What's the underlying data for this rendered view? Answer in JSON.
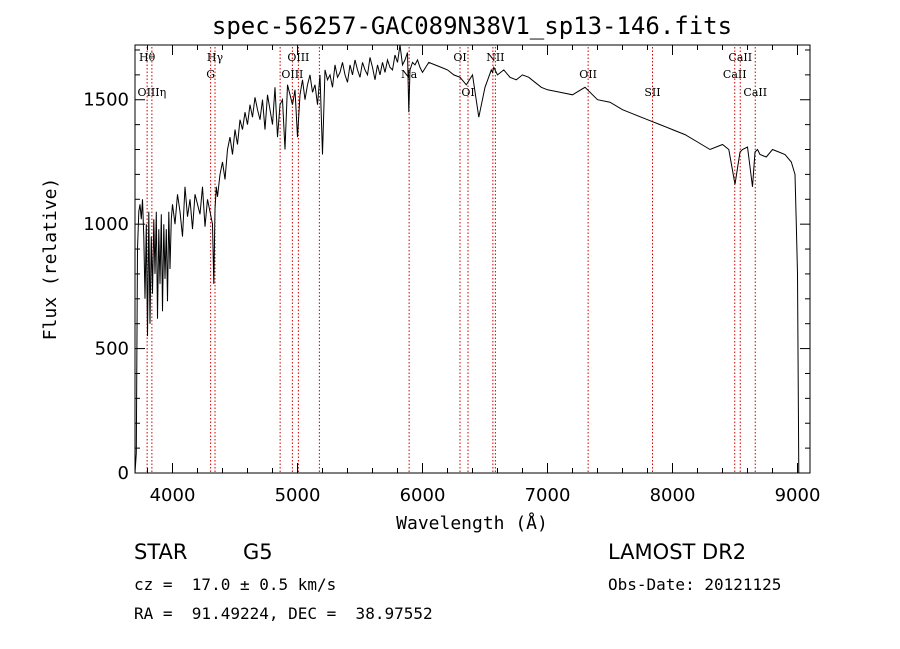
{
  "chart_data": {
    "type": "line",
    "title": "spec-56257-GAC089N38V1_sp13-146.fits",
    "xlabel": "Wavelength (Å)",
    "ylabel": "Flux (relative)",
    "xlim": [
      3700,
      9100
    ],
    "ylim": [
      0,
      1720
    ],
    "xticks": [
      4000,
      5000,
      6000,
      7000,
      8000,
      9000
    ],
    "yticks": [
      0,
      500,
      1000,
      1500
    ],
    "grid": false,
    "series": [
      {
        "x": [
          3700,
          3710,
          3720,
          3730,
          3740,
          3750,
          3760,
          3770,
          3780,
          3790,
          3800,
          3810,
          3820,
          3830,
          3840,
          3850,
          3860,
          3870,
          3880,
          3890,
          3900,
          3910,
          3920,
          3930,
          3940,
          3950,
          3960,
          3970,
          3980,
          3990,
          4000,
          4020,
          4040,
          4060,
          4080,
          4100,
          4120,
          4140,
          4160,
          4180,
          4200,
          4220,
          4240,
          4260,
          4280,
          4300,
          4320,
          4330,
          4340,
          4350,
          4360,
          4380,
          4400,
          4420,
          4440,
          4460,
          4480,
          4500,
          4520,
          4540,
          4560,
          4580,
          4600,
          4620,
          4640,
          4660,
          4680,
          4700,
          4720,
          4740,
          4760,
          4780,
          4800,
          4820,
          4840,
          4860,
          4880,
          4900,
          4920,
          4940,
          4960,
          4980,
          5000,
          5020,
          5040,
          5060,
          5080,
          5100,
          5120,
          5140,
          5160,
          5180,
          5200,
          5220,
          5240,
          5260,
          5280,
          5300,
          5320,
          5340,
          5360,
          5380,
          5400,
          5420,
          5440,
          5460,
          5480,
          5500,
          5520,
          5540,
          5560,
          5580,
          5600,
          5620,
          5640,
          5660,
          5680,
          5700,
          5720,
          5740,
          5760,
          5780,
          5800,
          5820,
          5840,
          5860,
          5880,
          5890,
          5900,
          5920,
          5940,
          5960,
          5980,
          6000,
          6050,
          6100,
          6150,
          6200,
          6250,
          6300,
          6350,
          6400,
          6450,
          6500,
          6550,
          6560,
          6570,
          6600,
          6650,
          6700,
          6750,
          6800,
          6850,
          6900,
          6950,
          7000,
          7100,
          7200,
          7300,
          7400,
          7500,
          7600,
          7700,
          7800,
          7900,
          8000,
          8100,
          8200,
          8300,
          8400,
          8450,
          8500,
          8540,
          8560,
          8600,
          8640,
          8660,
          8680,
          8700,
          8750,
          8800,
          8850,
          8900,
          8950,
          8980,
          8990,
          9000,
          9010
        ],
        "y": [
          0,
          80,
          900,
          1050,
          1080,
          1020,
          1100,
          950,
          700,
          1000,
          550,
          1050,
          600,
          950,
          720,
          1020,
          800,
          1050,
          620,
          980,
          760,
          1040,
          650,
          1000,
          780,
          980,
          690,
          1050,
          820,
          1020,
          1080,
          1000,
          1120,
          1050,
          950,
          1150,
          1030,
          1100,
          980,
          1120,
          1080,
          1040,
          1150,
          990,
          1100,
          1050,
          1000,
          760,
          1060,
          1150,
          1110,
          1200,
          1250,
          1180,
          1300,
          1350,
          1280,
          1380,
          1320,
          1420,
          1380,
          1450,
          1400,
          1480,
          1430,
          1510,
          1460,
          1420,
          1500,
          1380,
          1520,
          1460,
          1400,
          1550,
          1350,
          1480,
          1500,
          1300,
          1560,
          1520,
          1480,
          1540,
          1350,
          1520,
          1580,
          1500,
          1560,
          1600,
          1530,
          1560,
          1480,
          1600,
          1280,
          1620,
          1580,
          1600,
          1550,
          1640,
          1590,
          1610,
          1650,
          1600,
          1570,
          1640,
          1600,
          1660,
          1620,
          1590,
          1650,
          1620,
          1600,
          1670,
          1630,
          1580,
          1640,
          1600,
          1650,
          1610,
          1660,
          1630,
          1620,
          1680,
          1650,
          1720,
          1640,
          1660,
          1690,
          1450,
          1620,
          1650,
          1640,
          1660,
          1630,
          1610,
          1650,
          1640,
          1630,
          1620,
          1600,
          1590,
          1560,
          1600,
          1430,
          1550,
          1620,
          1610,
          1630,
          1600,
          1620,
          1590,
          1580,
          1600,
          1590,
          1570,
          1550,
          1540,
          1530,
          1520,
          1550,
          1500,
          1490,
          1460,
          1440,
          1420,
          1400,
          1380,
          1360,
          1330,
          1300,
          1320,
          1300,
          1160,
          1290,
          1300,
          1310,
          1150,
          1290,
          1300,
          1280,
          1270,
          1300,
          1290,
          1280,
          1250,
          1200,
          1000,
          800,
          0
        ]
      }
    ],
    "line_markers": [
      {
        "label": "Hθ",
        "x": 3797,
        "row": 0
      },
      {
        "label": "OIIIη",
        "x": 3835,
        "row": 2
      },
      {
        "label": "Hγ",
        "x": 4340,
        "row": 0
      },
      {
        "label": "G",
        "x": 4305,
        "row": 1
      },
      {
        "label": "OIII",
        "x": 5007,
        "row": 0
      },
      {
        "label": "OIII",
        "x": 4959,
        "row": 1
      },
      {
        "label": "",
        "x": 4861,
        "row": -1
      },
      {
        "label": "",
        "x": 5175,
        "row": -1
      },
      {
        "label": "Na",
        "x": 5893,
        "row": 1
      },
      {
        "label": "OI",
        "x": 6300,
        "row": 0
      },
      {
        "label": "OI",
        "x": 6364,
        "row": 2
      },
      {
        "label": "NII",
        "x": 6583,
        "row": 0
      },
      {
        "label": "",
        "x": 6563,
        "row": -1
      },
      {
        "label": "OII",
        "x": 7325,
        "row": 1
      },
      {
        "label": "SII",
        "x": 7840,
        "row": 2
      },
      {
        "label": "CaII",
        "x": 8542,
        "row": 0
      },
      {
        "label": "CaII",
        "x": 8498,
        "row": 1
      },
      {
        "label": "CaII",
        "x": 8662,
        "row": 2
      }
    ]
  },
  "info": {
    "object_class": "STAR",
    "subclass": "G5",
    "survey": "LAMOST DR2",
    "redshift_line": "cz =  17.0 ± 0.5 km/s",
    "obs_date_line": "Obs-Date: 20121125",
    "coords_line": "RA =  91.49224, DEC =  38.97552"
  },
  "colors": {
    "spectrum": "#000000",
    "marker_lines": "#cc0000",
    "axes": "#000000"
  }
}
